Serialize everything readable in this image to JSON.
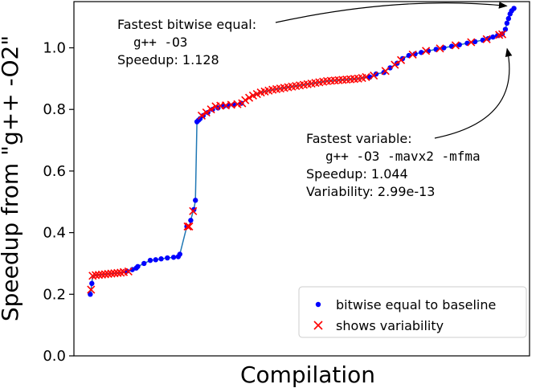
{
  "chart_data": {
    "type": "scatter",
    "xlabel": "Compilation",
    "ylabel": "Speedup from \"g++ -O2\"",
    "ylim": [
      0.0,
      1.15
    ],
    "yticks": [
      "0.0",
      "0.2",
      "0.4",
      "0.6",
      "0.8",
      "1.0"
    ],
    "grid": false,
    "legend_position": "lower-right",
    "series": [
      {
        "name": "bitwise equal to baseline",
        "marker": "dot",
        "color": "#0000ff",
        "points": [
          [
            1,
            0.2
          ],
          [
            3,
            0.235
          ],
          [
            48,
            0.275
          ],
          [
            55,
            0.28
          ],
          [
            60,
            0.285
          ],
          [
            62,
            0.29
          ],
          [
            70,
            0.3
          ],
          [
            78,
            0.31
          ],
          [
            85,
            0.312
          ],
          [
            92,
            0.315
          ],
          [
            100,
            0.318
          ],
          [
            108,
            0.32
          ],
          [
            114,
            0.322
          ],
          [
            116,
            0.33
          ],
          [
            125,
            0.42
          ],
          [
            130,
            0.44
          ],
          [
            134,
            0.475
          ],
          [
            136,
            0.505
          ],
          [
            138,
            0.76
          ],
          [
            140,
            0.765
          ],
          [
            142,
            0.77
          ],
          [
            146,
            0.78
          ],
          [
            152,
            0.79
          ],
          [
            158,
            0.8
          ],
          [
            165,
            0.805
          ],
          [
            172,
            0.81
          ],
          [
            178,
            0.812
          ],
          [
            185,
            0.815
          ],
          [
            195,
            0.82
          ],
          [
            360,
            0.905
          ],
          [
            368,
            0.915
          ],
          [
            378,
            0.92
          ],
          [
            386,
            0.935
          ],
          [
            395,
            0.95
          ],
          [
            402,
            0.965
          ],
          [
            410,
            0.975
          ],
          [
            418,
            0.98
          ],
          [
            426,
            0.985
          ],
          [
            435,
            0.99
          ],
          [
            445,
            0.995
          ],
          [
            455,
            1.0
          ],
          [
            465,
            1.005
          ],
          [
            475,
            1.01
          ],
          [
            485,
            1.015
          ],
          [
            495,
            1.02
          ],
          [
            505,
            1.025
          ],
          [
            512,
            1.03
          ],
          [
            518,
            1.035
          ],
          [
            524,
            1.04
          ],
          [
            530,
            1.045
          ],
          [
            534,
            1.06
          ],
          [
            536,
            1.08
          ],
          [
            538,
            1.095
          ],
          [
            540,
            1.11
          ],
          [
            542,
            1.12
          ],
          [
            545,
            1.128
          ]
        ]
      },
      {
        "name": "shows variability",
        "marker": "x",
        "color": "#ff0000",
        "points": [
          [
            2,
            0.215
          ],
          [
            4,
            0.26
          ],
          [
            8,
            0.262
          ],
          [
            12,
            0.263
          ],
          [
            16,
            0.264
          ],
          [
            20,
            0.265
          ],
          [
            24,
            0.266
          ],
          [
            28,
            0.267
          ],
          [
            32,
            0.268
          ],
          [
            36,
            0.269
          ],
          [
            40,
            0.27
          ],
          [
            44,
            0.272
          ],
          [
            50,
            0.274
          ],
          [
            126,
            0.42
          ],
          [
            128,
            0.42
          ],
          [
            133,
            0.47
          ],
          [
            144,
            0.78
          ],
          [
            150,
            0.79
          ],
          [
            156,
            0.8
          ],
          [
            162,
            0.81
          ],
          [
            168,
            0.812
          ],
          [
            175,
            0.813
          ],
          [
            182,
            0.815
          ],
          [
            190,
            0.817
          ],
          [
            196,
            0.82
          ],
          [
            200,
            0.83
          ],
          [
            205,
            0.838
          ],
          [
            210,
            0.845
          ],
          [
            215,
            0.85
          ],
          [
            220,
            0.855
          ],
          [
            225,
            0.858
          ],
          [
            230,
            0.861
          ],
          [
            235,
            0.864
          ],
          [
            240,
            0.866
          ],
          [
            245,
            0.868
          ],
          [
            250,
            0.87
          ],
          [
            255,
            0.872
          ],
          [
            260,
            0.874
          ],
          [
            265,
            0.876
          ],
          [
            270,
            0.878
          ],
          [
            275,
            0.88
          ],
          [
            280,
            0.882
          ],
          [
            285,
            0.884
          ],
          [
            290,
            0.886
          ],
          [
            295,
            0.888
          ],
          [
            300,
            0.89
          ],
          [
            305,
            0.892
          ],
          [
            310,
            0.893
          ],
          [
            315,
            0.894
          ],
          [
            320,
            0.895
          ],
          [
            325,
            0.896
          ],
          [
            330,
            0.897
          ],
          [
            335,
            0.898
          ],
          [
            340,
            0.899
          ],
          [
            345,
            0.9
          ],
          [
            350,
            0.902
          ],
          [
            355,
            0.905
          ],
          [
            365,
            0.91
          ],
          [
            380,
            0.925
          ],
          [
            392,
            0.945
          ],
          [
            400,
            0.96
          ],
          [
            415,
            0.978
          ],
          [
            432,
            0.99
          ],
          [
            450,
            0.998
          ],
          [
            470,
            1.008
          ],
          [
            490,
            1.018
          ],
          [
            510,
            1.028
          ],
          [
            526,
            1.042
          ],
          [
            530,
            1.044
          ]
        ]
      }
    ],
    "annotations": [
      {
        "id": "ann-bitwise",
        "lines": [
          {
            "text": "Fastest bitwise equal:",
            "font": "sans"
          },
          {
            "text": "g++ -O3",
            "font": "mono",
            "indent": true
          },
          {
            "text": "Speedup: 1.128",
            "font": "sans"
          }
        ],
        "target": [
          545,
          1.128
        ]
      },
      {
        "id": "ann-variable",
        "lines": [
          {
            "text": "Fastest variable:",
            "font": "sans"
          },
          {
            "text": "g++ -O3 -mavx2 -mfma",
            "font": "mono",
            "indent": true
          },
          {
            "text": "Speedup: 1.044",
            "font": "sans"
          },
          {
            "text": "Variability: 2.99e-13",
            "font": "sans"
          }
        ],
        "target": [
          530,
          1.044
        ]
      }
    ]
  }
}
